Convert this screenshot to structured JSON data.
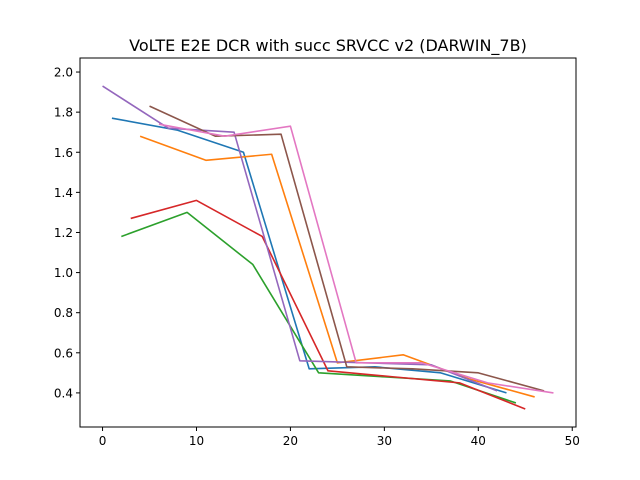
{
  "chart_data": {
    "type": "line",
    "title": "VoLTE E2E DCR with succ SRVCC v2 (DARWIN_7B)",
    "xlabel": "",
    "ylabel": "",
    "xlim": [
      -2.4,
      50.4
    ],
    "ylim": [
      0.23,
      2.07
    ],
    "xticks": [
      0,
      10,
      20,
      30,
      40,
      50
    ],
    "yticks": [
      0.4,
      0.6,
      0.8,
      1.0,
      1.2,
      1.4,
      1.6,
      1.8,
      2.0
    ],
    "xtick_labels": [
      "0",
      "10",
      "20",
      "30",
      "40",
      "50"
    ],
    "ytick_labels": [
      "0.4",
      "0.6",
      "0.8",
      "1.0",
      "1.2",
      "1.4",
      "1.6",
      "1.8",
      "2.0"
    ],
    "grid": false,
    "series": [
      {
        "color": "#1f77b4",
        "x": [
          1,
          8,
          15,
          22,
          29,
          36,
          43
        ],
        "y": [
          1.77,
          1.71,
          1.6,
          0.52,
          0.53,
          0.5,
          0.4
        ]
      },
      {
        "color": "#ff7f0e",
        "x": [
          4,
          11,
          18,
          25,
          32,
          39,
          46
        ],
        "y": [
          1.68,
          1.56,
          1.59,
          0.55,
          0.59,
          0.47,
          0.38
        ]
      },
      {
        "color": "#2ca02c",
        "x": [
          2,
          9,
          16,
          23,
          30,
          37,
          44
        ],
        "y": [
          1.18,
          1.3,
          1.04,
          0.5,
          0.48,
          0.46,
          0.35
        ]
      },
      {
        "color": "#d62728",
        "x": [
          3,
          10,
          17,
          24,
          31,
          38,
          45
        ],
        "y": [
          1.27,
          1.36,
          1.18,
          0.51,
          0.48,
          0.45,
          0.32
        ]
      },
      {
        "color": "#9467bd",
        "x": [
          0,
          7,
          14,
          21,
          28,
          35,
          42
        ],
        "y": [
          1.93,
          1.72,
          1.7,
          0.56,
          0.55,
          0.54,
          0.41
        ]
      },
      {
        "color": "#8c564b",
        "x": [
          5,
          12,
          19,
          26,
          33,
          40,
          47
        ],
        "y": [
          1.83,
          1.68,
          1.69,
          0.53,
          0.52,
          0.5,
          0.41
        ]
      },
      {
        "color": "#e377c2",
        "x": [
          6,
          13,
          20,
          27,
          34,
          41,
          48
        ],
        "y": [
          1.74,
          1.68,
          1.73,
          0.55,
          0.55,
          0.45,
          0.4
        ]
      }
    ]
  }
}
